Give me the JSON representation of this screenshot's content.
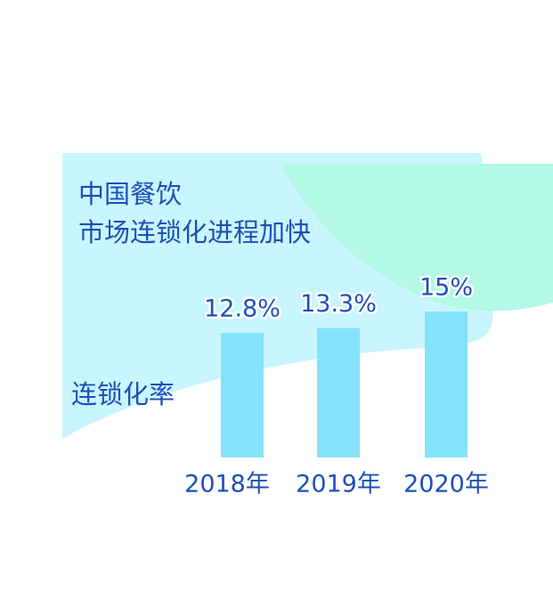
{
  "chart_data": {
    "type": "bar",
    "title": [
      "中国餐饮",
      "市场连锁化进程加快"
    ],
    "y_label": "连锁化率",
    "categories": [
      "2018年",
      "2019年",
      "2020年"
    ],
    "values": [
      12.8,
      13.3,
      15
    ],
    "value_labels": [
      "12.8%",
      "13.3%",
      "15%"
    ],
    "color": "#84e3fb",
    "ylim": [
      0,
      15
    ]
  }
}
